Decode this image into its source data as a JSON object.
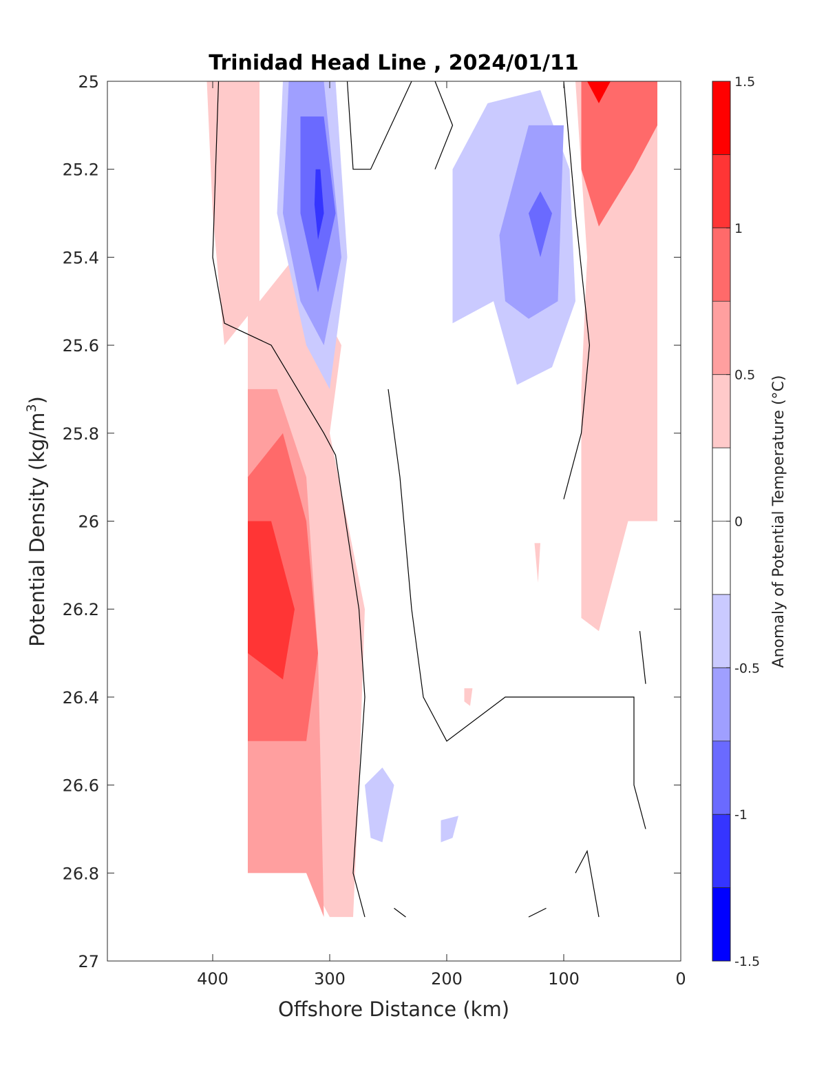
{
  "chart_data": {
    "type": "heatmap",
    "title": "Trinidad Head Line , 2024/01/11",
    "xlabel": "Offshore Distance (km)",
    "ylabel_main": "Potential Density (kg/m",
    "ylabel_sup": "3",
    "ylabel_close": ")",
    "xlim": [
      490,
      0
    ],
    "ylim": [
      25,
      27
    ],
    "x_reversed": true,
    "y_reversed": true,
    "x_ticks": [
      400,
      300,
      200,
      100,
      0
    ],
    "x_tick_labels": [
      "400",
      "300",
      "200",
      "100",
      "0"
    ],
    "y_ticks": [
      25,
      25.2,
      25.4,
      25.6,
      25.8,
      26,
      26.2,
      26.4,
      26.6,
      26.8,
      27
    ],
    "y_tick_labels": [
      "25",
      "25.2",
      "25.4",
      "25.6",
      "25.8",
      "26",
      "26.2",
      "26.4",
      "26.6",
      "26.8",
      "27"
    ],
    "colorbar": {
      "label": "Anomaly of Potential Temperature (°C)",
      "range": [
        -1.5,
        1.5
      ],
      "levels": [
        -1.5,
        -1.25,
        -1.0,
        -0.75,
        -0.5,
        -0.25,
        0,
        0.25,
        0.5,
        0.75,
        1.0,
        1.25,
        1.5
      ],
      "colors": [
        "#0000ff",
        "#3535ff",
        "#6a6aff",
        "#9f9fff",
        "#cacaff",
        "#ffffff",
        "#ffffff",
        "#ffcaca",
        "#ff9f9f",
        "#ff6a6a",
        "#ff3535",
        "#ff0000"
      ],
      "tick_values": [
        1.5,
        1,
        0.5,
        0,
        -0.5,
        -1,
        -1.5
      ],
      "tick_labels": [
        "1.5",
        "1",
        "0.5",
        "0",
        "-0.5",
        "-1",
        "-1.5"
      ]
    },
    "contour_line_level": 0,
    "data_extent": {
      "x_min": 20,
      "x_max": 370,
      "y_min": 25,
      "y_max": 26.9
    },
    "fill_regions": [
      {
        "name": "warm-pink-offshore",
        "value": 0.4,
        "polygon": [
          [
            370,
            25
          ],
          [
            405,
            25
          ],
          [
            400,
            25.3
          ],
          [
            390,
            25.6
          ],
          [
            330,
            25.4
          ],
          [
            290,
            25.6
          ],
          [
            300,
            25.8
          ],
          [
            270,
            26.2
          ],
          [
            275,
            26.6
          ],
          [
            280,
            26.9
          ],
          [
            300,
            26.9
          ],
          [
            320,
            26.8
          ],
          [
            370,
            26.8
          ]
        ]
      },
      {
        "name": "warm-salmon-offshore",
        "value": 0.6,
        "polygon": [
          [
            370,
            25.7
          ],
          [
            345,
            25.7
          ],
          [
            320,
            25.9
          ],
          [
            310,
            26.3
          ],
          [
            305,
            26.9
          ],
          [
            320,
            26.8
          ],
          [
            370,
            26.8
          ]
        ]
      },
      {
        "name": "warm-red-offshore",
        "value": 0.9,
        "polygon": [
          [
            370,
            25.9
          ],
          [
            340,
            25.8
          ],
          [
            320,
            26.0
          ],
          [
            310,
            26.3
          ],
          [
            320,
            26.5
          ],
          [
            370,
            26.5
          ]
        ]
      },
      {
        "name": "warm-core-offshore",
        "value": 1.1,
        "polygon": [
          [
            370,
            26.0
          ],
          [
            350,
            26.0
          ],
          [
            330,
            26.2
          ],
          [
            340,
            26.36
          ],
          [
            370,
            26.3
          ]
        ]
      },
      {
        "name": "warm-pink-left-strip",
        "value": 0.4,
        "polygon": [
          [
            370,
            25
          ],
          [
            360,
            25
          ],
          [
            360,
            25.58
          ],
          [
            370,
            25.58
          ]
        ]
      },
      {
        "name": "cold-light-west",
        "value": -0.4,
        "polygon": [
          [
            340,
            25
          ],
          [
            295,
            25
          ],
          [
            285,
            25.4
          ],
          [
            300,
            25.7
          ],
          [
            320,
            25.6
          ],
          [
            345,
            25.3
          ]
        ]
      },
      {
        "name": "cold-medium-west",
        "value": -0.6,
        "polygon": [
          [
            335,
            25
          ],
          [
            305,
            25
          ],
          [
            290,
            25.4
          ],
          [
            305,
            25.6
          ],
          [
            325,
            25.5
          ],
          [
            340,
            25.3
          ]
        ]
      },
      {
        "name": "cold-strong-west",
        "value": -0.85,
        "polygon": [
          [
            325,
            25.08
          ],
          [
            305,
            25.08
          ],
          [
            295,
            25.3
          ],
          [
            310,
            25.48
          ],
          [
            325,
            25.3
          ]
        ]
      },
      {
        "name": "cold-core-west",
        "value": -1.1,
        "polygon": [
          [
            312,
            25.2
          ],
          [
            308,
            25.2
          ],
          [
            305,
            25.3
          ],
          [
            310,
            25.36
          ],
          [
            313,
            25.28
          ]
        ]
      },
      {
        "name": "cold-light-central",
        "value": -0.4,
        "polygon": [
          [
            195,
            25.2
          ],
          [
            165,
            25.05
          ],
          [
            120,
            25.02
          ],
          [
            95,
            25.2
          ],
          [
            90,
            25.5
          ],
          [
            110,
            25.65
          ],
          [
            140,
            25.69
          ],
          [
            160,
            25.5
          ],
          [
            195,
            25.55
          ]
        ]
      },
      {
        "name": "cold-medium-central",
        "value": -0.6,
        "polygon": [
          [
            155,
            25.35
          ],
          [
            130,
            25.1
          ],
          [
            100,
            25.1
          ],
          [
            105,
            25.5
          ],
          [
            130,
            25.54
          ],
          [
            150,
            25.5
          ]
        ]
      },
      {
        "name": "cold-core-central",
        "value": -0.85,
        "polygon": [
          [
            130,
            25.3
          ],
          [
            120,
            25.25
          ],
          [
            110,
            25.3
          ],
          [
            120,
            25.4
          ]
        ]
      },
      {
        "name": "warm-nearshore",
        "value": 0.4,
        "polygon": [
          [
            90,
            25
          ],
          [
            20,
            25
          ],
          [
            20,
            26.0
          ],
          [
            45,
            26.0
          ],
          [
            70,
            26.25
          ],
          [
            85,
            26.22
          ],
          [
            85,
            25.7
          ],
          [
            80,
            25.4
          ]
        ]
      },
      {
        "name": "warm-red-nearshore",
        "value": 0.9,
        "polygon": [
          [
            85,
            25
          ],
          [
            20,
            25
          ],
          [
            20,
            25.1
          ],
          [
            40,
            25.2
          ],
          [
            70,
            25.33
          ],
          [
            85,
            25.2
          ]
        ]
      },
      {
        "name": "warm-core-nearshore",
        "value": 1.3,
        "polygon": [
          [
            80,
            25
          ],
          [
            60,
            25
          ],
          [
            70,
            25.05
          ]
        ]
      },
      {
        "name": "cold-blob-south-1",
        "value": -0.4,
        "polygon": [
          [
            270,
            26.6
          ],
          [
            255,
            26.56
          ],
          [
            245,
            26.6
          ],
          [
            255,
            26.73
          ],
          [
            265,
            26.72
          ]
        ]
      },
      {
        "name": "cold-blob-south-2",
        "value": -0.4,
        "polygon": [
          [
            205,
            26.68
          ],
          [
            190,
            26.67
          ],
          [
            195,
            26.72
          ],
          [
            205,
            26.73
          ]
        ]
      },
      {
        "name": "warm-blob-south",
        "value": 0.4,
        "polygon": [
          [
            185,
            26.38
          ],
          [
            178,
            26.38
          ],
          [
            180,
            26.42
          ],
          [
            185,
            26.41
          ]
        ]
      },
      {
        "name": "warm-blob-mid",
        "value": 0.4,
        "polygon": [
          [
            125,
            26.05
          ],
          [
            120,
            26.05
          ],
          [
            122,
            26.14
          ]
        ]
      }
    ],
    "contour_lines": [
      [
        [
          395,
          25
        ],
        [
          400,
          25.4
        ],
        [
          390,
          25.55
        ],
        [
          350,
          25.6
        ],
        [
          305,
          25.8
        ],
        [
          295,
          25.85
        ],
        [
          275,
          26.2
        ],
        [
          270,
          26.4
        ],
        [
          280,
          26.8
        ],
        [
          270,
          26.9
        ]
      ],
      [
        [
          285,
          25
        ],
        [
          280,
          25.2
        ],
        [
          265,
          25.2
        ],
        [
          230,
          25.0
        ]
      ],
      [
        [
          210,
          25.0
        ],
        [
          195,
          25.1
        ],
        [
          210,
          25.2
        ]
      ],
      [
        [
          100,
          25.0
        ],
        [
          90,
          25.3
        ],
        [
          78,
          25.6
        ],
        [
          85,
          25.8
        ],
        [
          100,
          25.95
        ]
      ],
      [
        [
          250,
          25.7
        ],
        [
          240,
          25.9
        ],
        [
          230,
          26.2
        ],
        [
          220,
          26.4
        ],
        [
          200,
          26.5
        ],
        [
          150,
          26.4
        ],
        [
          100,
          26.4
        ],
        [
          50,
          26.4
        ],
        [
          40,
          26.4
        ],
        [
          40,
          26.6
        ],
        [
          30,
          26.7
        ]
      ],
      [
        [
          90,
          26.8
        ],
        [
          80,
          26.75
        ],
        [
          70,
          26.9
        ]
      ],
      [
        [
          35,
          26.25
        ],
        [
          30,
          26.37
        ]
      ],
      [
        [
          245,
          26.88
        ],
        [
          235,
          26.9
        ]
      ],
      [
        [
          130,
          26.9
        ],
        [
          115,
          26.88
        ]
      ]
    ]
  }
}
